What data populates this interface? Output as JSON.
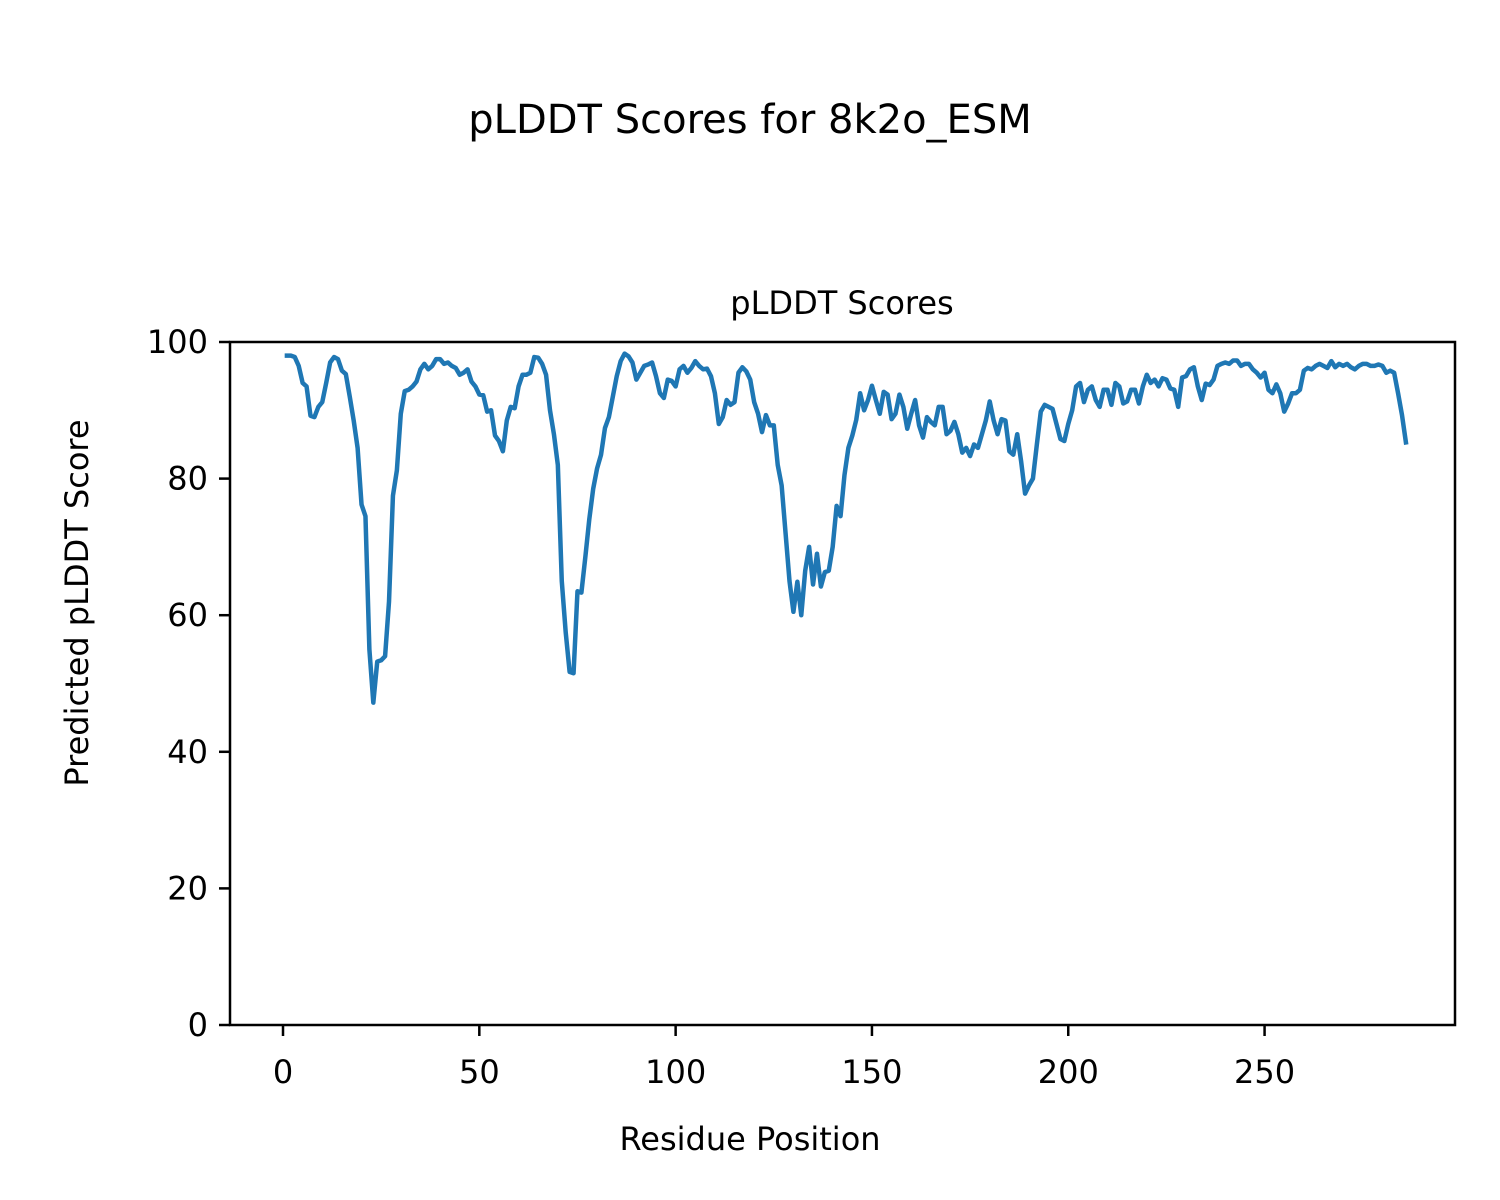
{
  "figure": {
    "suptitle": "pLDDT Scores for 8k2o_ESM"
  },
  "chart_data": {
    "type": "line",
    "title": "pLDDT Scores",
    "xlabel": "Residue Position",
    "ylabel": "Predicted pLDDT Score",
    "xlim": [
      -13.5,
      298.5
    ],
    "ylim": [
      0,
      100
    ],
    "xticks": [
      0,
      50,
      100,
      150,
      200,
      250
    ],
    "yticks": [
      0,
      20,
      40,
      60,
      80,
      100
    ],
    "grid": false,
    "line_color": "#1f77b4",
    "x_start": 1,
    "x_step": 1,
    "series": [
      {
        "values": [
          98.0,
          98.0,
          97.8,
          96.5,
          94.0,
          93.5,
          89.2,
          89.0,
          90.5,
          91.2,
          94.0,
          97.0,
          97.8,
          97.5,
          95.8,
          95.3,
          92.0,
          88.5,
          84.5,
          76.2,
          74.5,
          55.0,
          47.2,
          53.2,
          53.4,
          54.0,
          62.0,
          77.5,
          81.2,
          89.5,
          92.8,
          93.0,
          93.5,
          94.2,
          96.0,
          96.8,
          96.0,
          96.5,
          97.5,
          97.5,
          96.8,
          97.0,
          96.5,
          96.2,
          95.2,
          95.5,
          96.0,
          94.2,
          93.5,
          92.3,
          92.2,
          89.8,
          90.0,
          86.3,
          85.5,
          84.0,
          88.5,
          90.5,
          90.3,
          93.5,
          95.2,
          95.2,
          95.5,
          97.8,
          97.7,
          96.8,
          95.2,
          90.0,
          86.5,
          82.0,
          65.0,
          57.5,
          51.7,
          51.5,
          63.5,
          63.3,
          68.5,
          74.0,
          78.5,
          81.5,
          83.5,
          87.4,
          89.0,
          92.0,
          95.0,
          97.2,
          98.3,
          97.9,
          97.0,
          94.5,
          95.5,
          96.5,
          96.7,
          97.0,
          95.0,
          92.5,
          91.8,
          94.5,
          94.3,
          93.5,
          96.0,
          96.5,
          95.5,
          96.2,
          97.2,
          96.5,
          96.0,
          96.1,
          95.0,
          92.5,
          88.0,
          89.0,
          91.5,
          90.8,
          91.2,
          95.5,
          96.3,
          95.7,
          94.5,
          91.2,
          89.5,
          86.8,
          89.3,
          87.8,
          87.8,
          82.0,
          79.0,
          72.0,
          65.0,
          60.5,
          64.9,
          60.0,
          66.5,
          70.0,
          64.5,
          69.0,
          64.2,
          66.3,
          66.5,
          70.0,
          76.0,
          74.5,
          80.5,
          84.5,
          86.3,
          88.6,
          92.5,
          90.0,
          91.5,
          93.6,
          91.5,
          89.5,
          92.7,
          92.3,
          88.7,
          89.5,
          92.3,
          90.5,
          87.3,
          89.5,
          91.5,
          87.8,
          86.0,
          89.0,
          88.3,
          87.8,
          90.5,
          90.5,
          86.5,
          87.0,
          88.3,
          86.5,
          83.8,
          84.5,
          83.3,
          85.0,
          84.5,
          86.5,
          88.5,
          91.3,
          88.5,
          86.5,
          88.7,
          88.5,
          84.0,
          83.5,
          86.5,
          82.5,
          77.8,
          79.0,
          80.0,
          85.0,
          89.8,
          90.8,
          90.5,
          90.2,
          88.0,
          85.8,
          85.5,
          88.0,
          90.0,
          93.5,
          94.0,
          91.2,
          93.0,
          93.5,
          91.5,
          90.5,
          93.0,
          93.0,
          90.8,
          94.0,
          93.5,
          91.0,
          91.3,
          93.0,
          93.0,
          91.0,
          93.5,
          95.2,
          94.0,
          94.5,
          93.5,
          94.7,
          94.5,
          93.2,
          93.0,
          90.5,
          94.8,
          95.0,
          96.0,
          96.3,
          93.5,
          91.5,
          93.9,
          93.7,
          94.5,
          96.5,
          96.8,
          97.0,
          96.8,
          97.3,
          97.3,
          96.5,
          96.8,
          96.8,
          96.0,
          95.5,
          94.8,
          95.5,
          93.0,
          92.5,
          93.8,
          92.5,
          89.8,
          91.0,
          92.5,
          92.5,
          93.0,
          95.8,
          96.2,
          96.0,
          96.5,
          96.8,
          96.5,
          96.2,
          97.2,
          96.3,
          96.8,
          96.5,
          96.8,
          96.3,
          96.0,
          96.5,
          96.8,
          96.8,
          96.5,
          96.5,
          96.7,
          96.5,
          95.5,
          95.8,
          95.5,
          92.5,
          89.3,
          85.3
        ]
      }
    ]
  }
}
